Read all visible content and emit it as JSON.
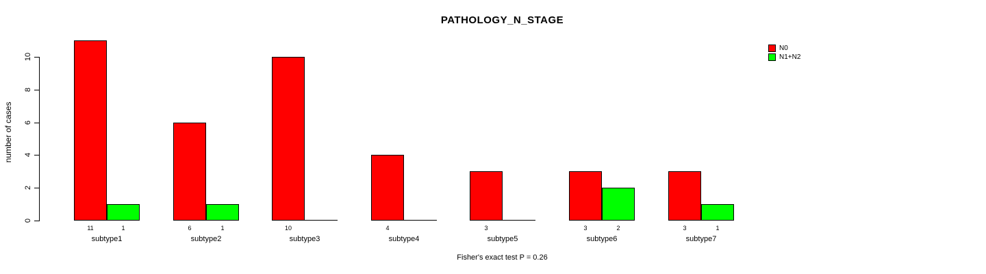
{
  "chart_data": {
    "type": "bar",
    "title": "PATHOLOGY_N_STAGE",
    "ylabel": "number of cases",
    "xlabel": "",
    "categories": [
      "subtype1",
      "subtype2",
      "subtype3",
      "subtype4",
      "subtype5",
      "subtype6",
      "subtype7"
    ],
    "series": [
      {
        "name": "N0",
        "color": "#ff0000",
        "values": [
          11,
          6,
          10,
          4,
          3,
          3,
          3
        ]
      },
      {
        "name": "N1+N2",
        "color": "#00ff00",
        "values": [
          1,
          1,
          0,
          0,
          0,
          2,
          1
        ]
      }
    ],
    "yticks": [
      0,
      2,
      4,
      6,
      8,
      10
    ],
    "ylim": [
      0,
      10
    ],
    "grid": false,
    "legend_position": "top-right",
    "bar_value_labels_shown": true,
    "annotation": "Fisher's exact test P = 0.26",
    "bar_edge_color": "#000000",
    "background": "#ffffff",
    "text_color": "#000000"
  }
}
